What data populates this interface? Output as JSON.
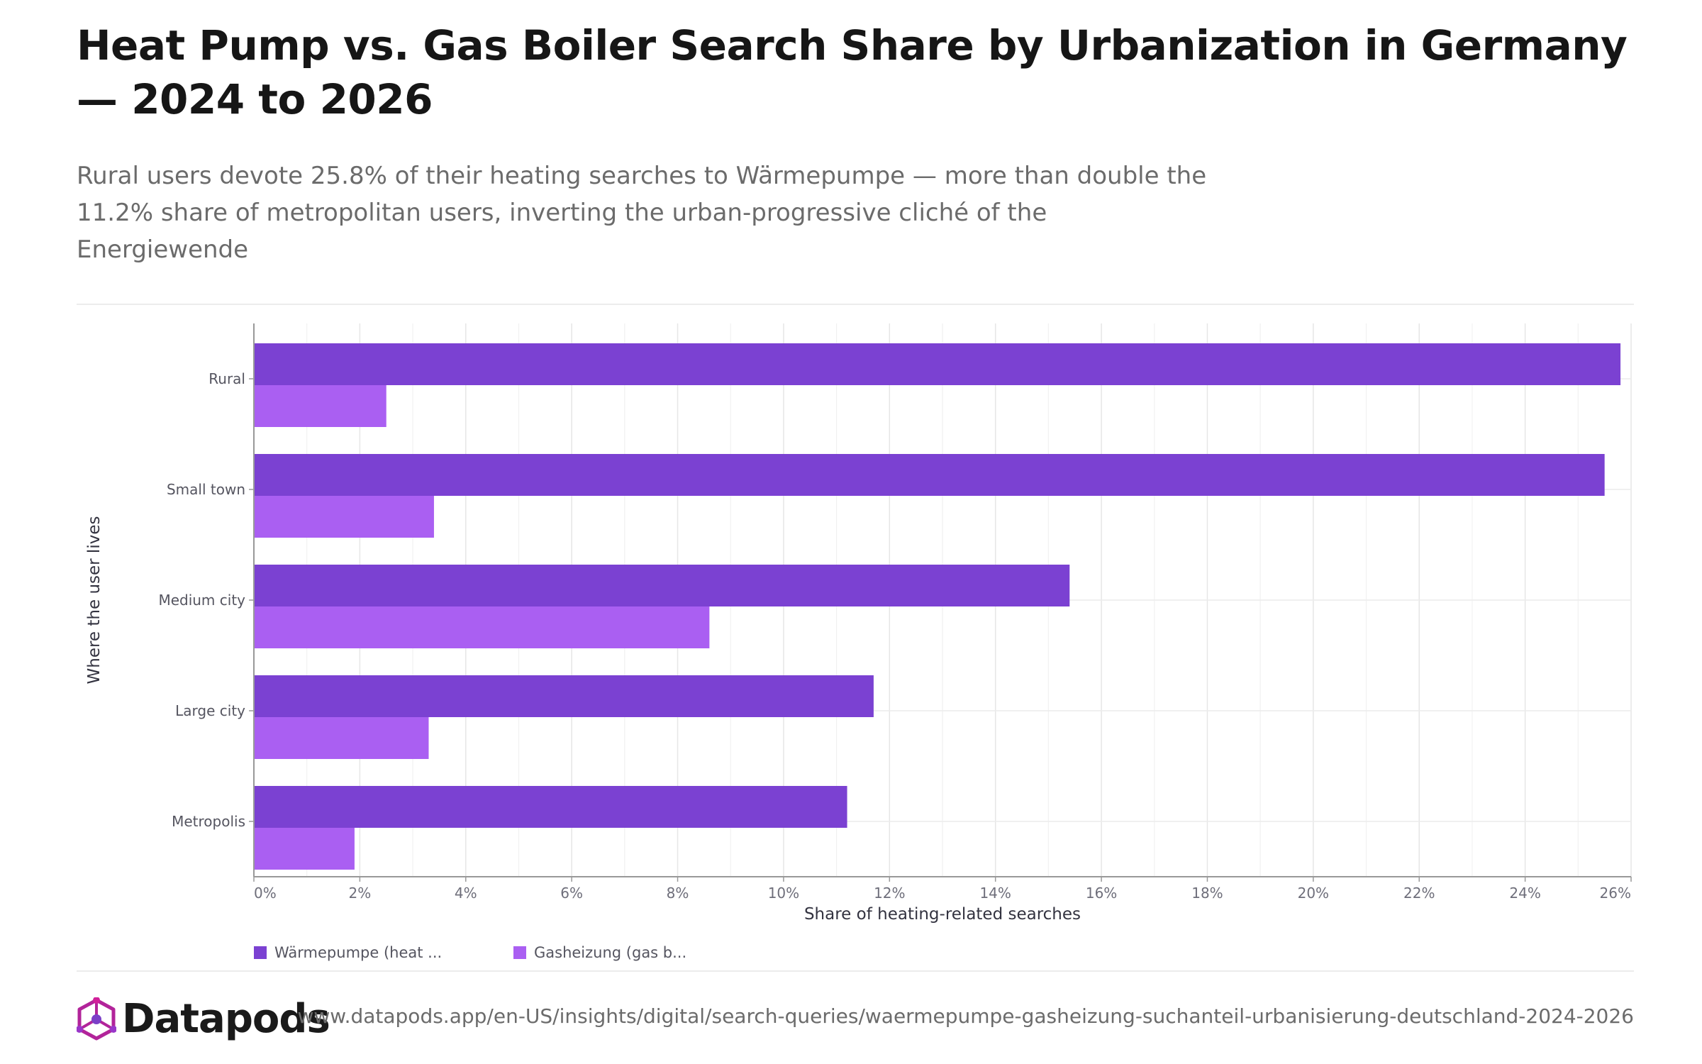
{
  "header": {
    "title": "Heat Pump vs. Gas Boiler Search Share by Urbanization in Germany — 2024 to 2026",
    "subtitle": "Rural users devote 25.8% of their heating searches to Wärmepumpe — more than double the 11.2% share of metropolitan users, inverting the urban-progressive cliché of the Energiewende"
  },
  "chart_data": {
    "type": "bar",
    "orientation": "horizontal",
    "categories": [
      "Rural",
      "Small town",
      "Medium city",
      "Large city",
      "Metropolis"
    ],
    "series": [
      {
        "name": "Wärmepumpe (heat ...",
        "color": "#7b41d2",
        "values": [
          25.8,
          25.5,
          15.4,
          11.7,
          11.2
        ]
      },
      {
        "name": "Gasheizung (gas b...",
        "color": "#aa5ff2",
        "values": [
          2.5,
          3.4,
          8.6,
          3.3,
          1.9
        ]
      }
    ],
    "xlabel": "Share of heating-related searches",
    "ylabel": "Where the user lives",
    "xlim": [
      0,
      26
    ],
    "xticks": [
      0,
      2,
      4,
      6,
      8,
      10,
      12,
      14,
      16,
      18,
      20,
      22,
      24,
      26
    ],
    "tick_suffix": "%",
    "grid": true,
    "legend_position": "bottom-left"
  },
  "footer": {
    "brand": "Datapods",
    "url": "www.datapods.app/en-US/insights/digital/search-queries/waermepumpe-gasheizung-suchanteil-urbanisierung-deutschland-2024-2026"
  }
}
